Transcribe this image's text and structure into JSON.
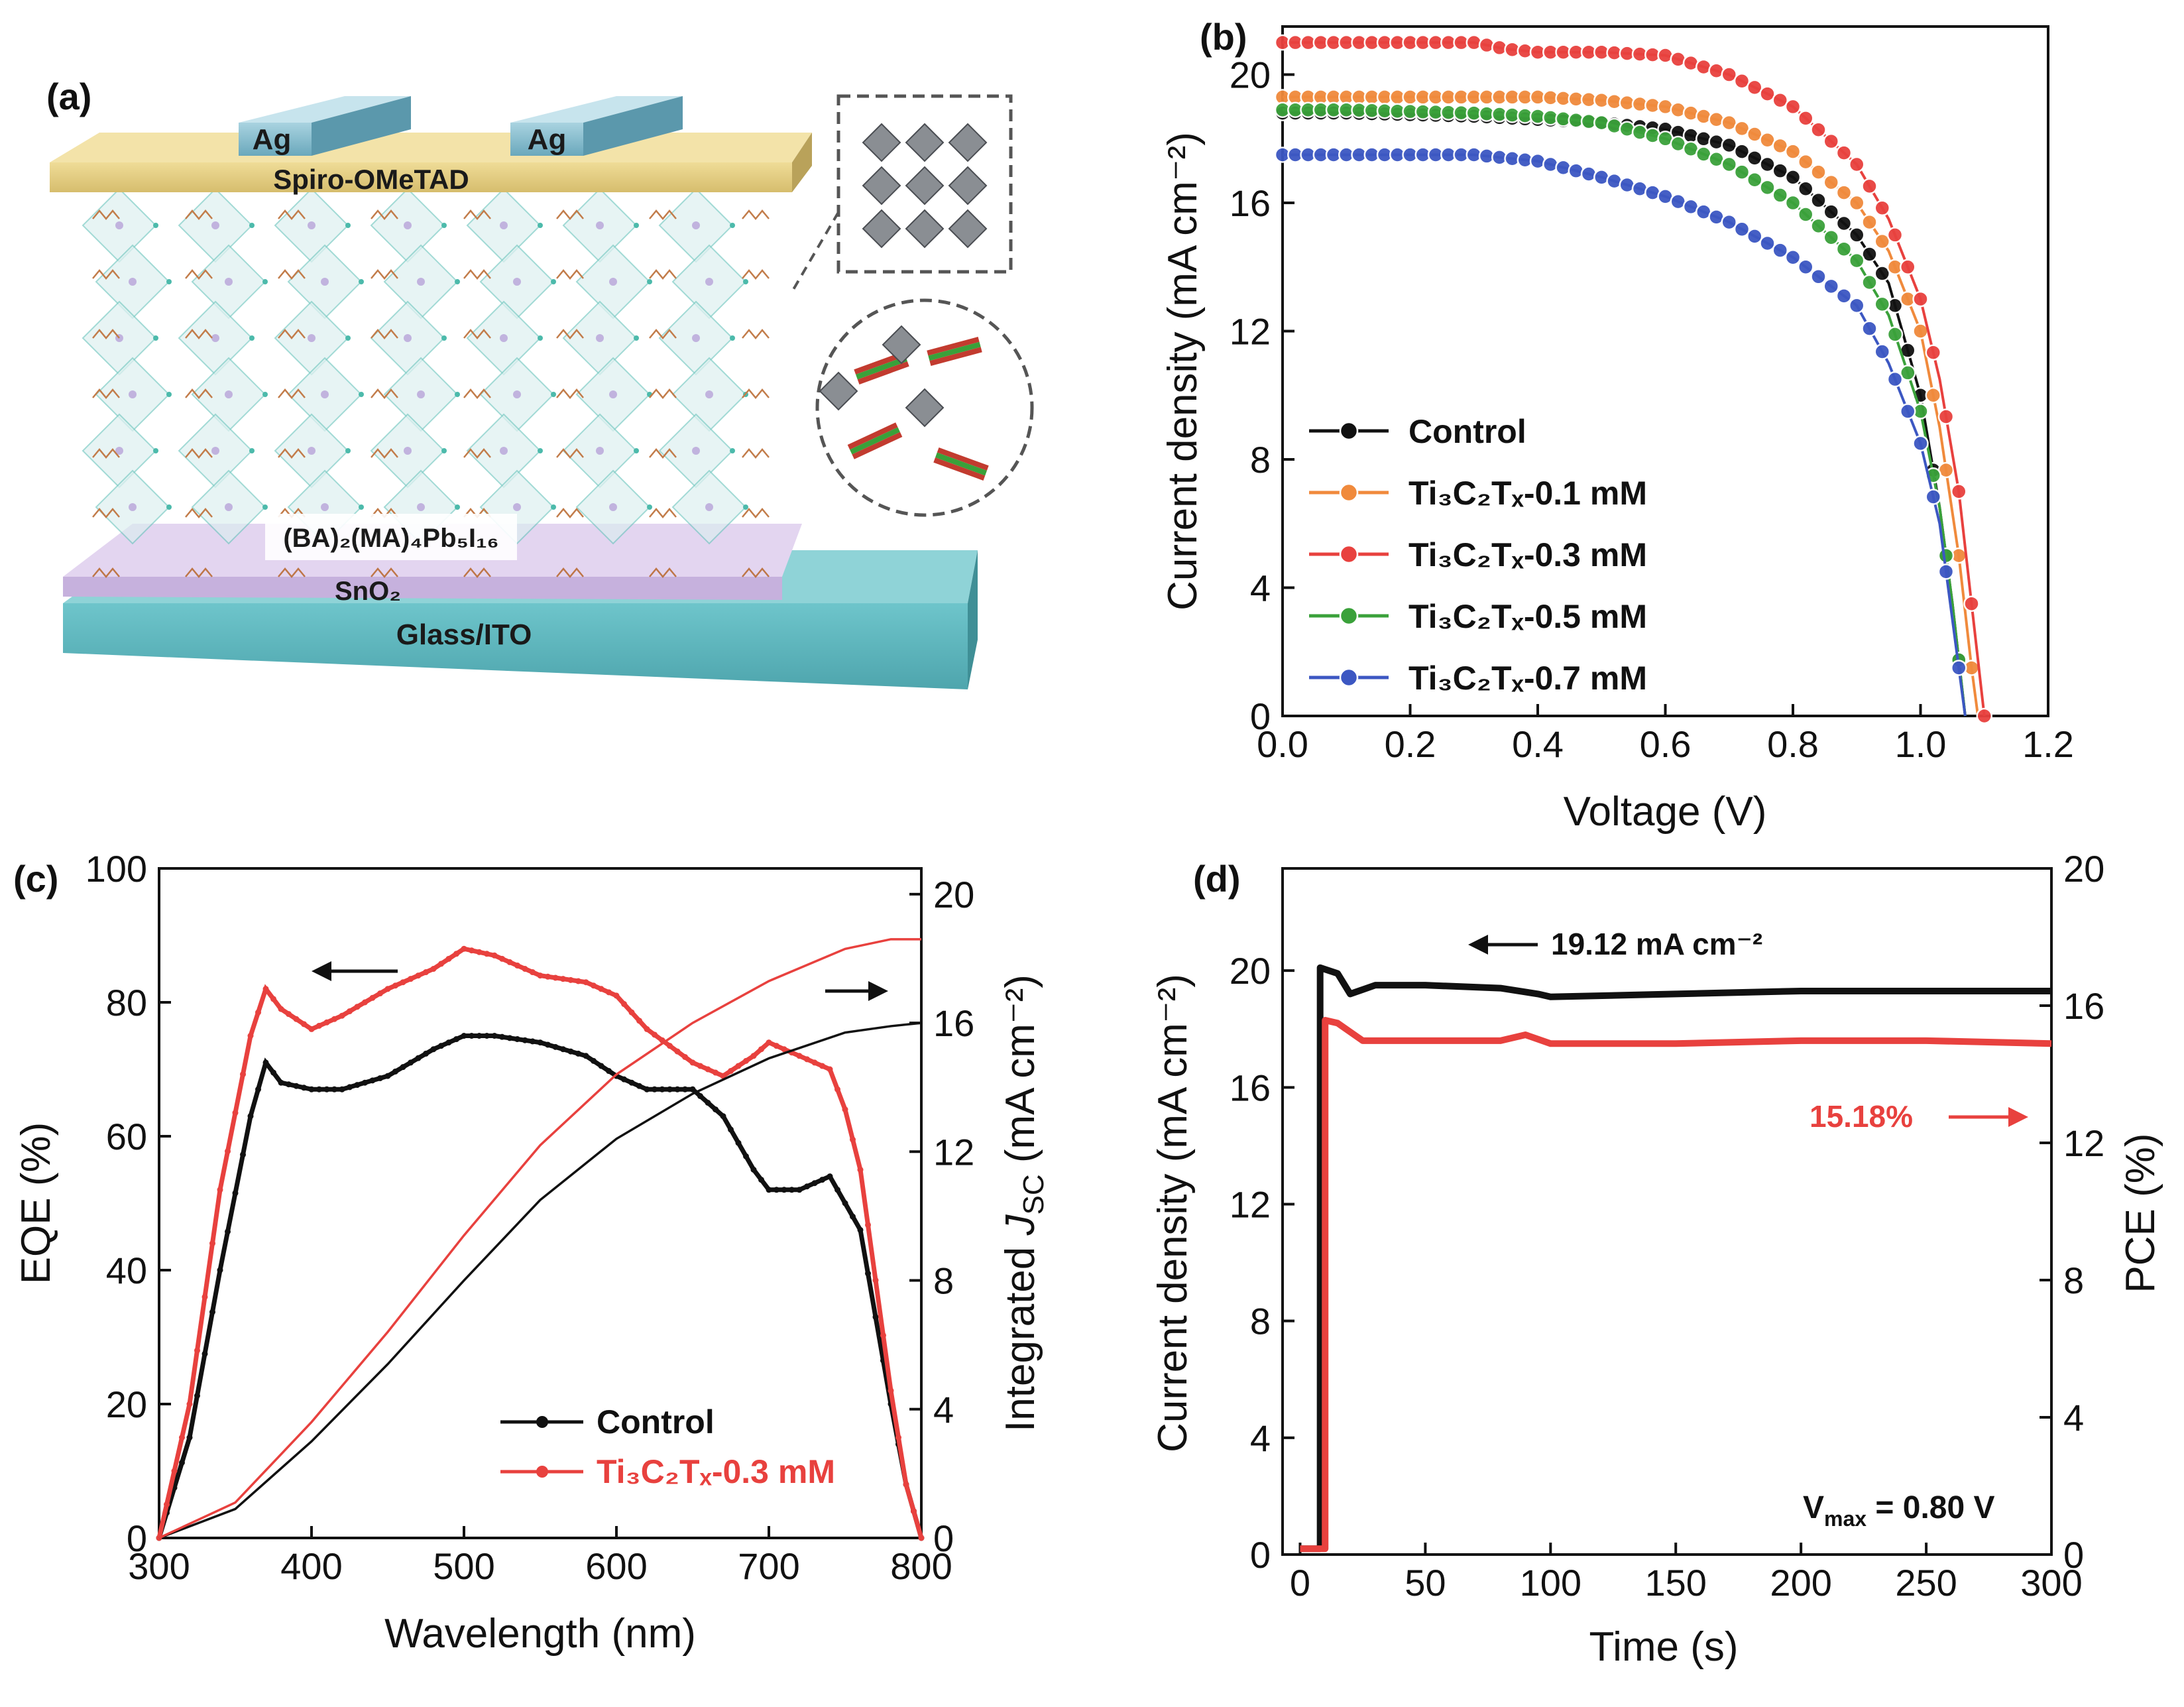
{
  "panels": {
    "a": {
      "letter": "(a)",
      "labels": {
        "electrode_left": "Ag",
        "electrode_right": "Ag",
        "htl": "Spiro-OMeTAD",
        "perovskite": "(BA)₂(MA)₄Pb₅I₁₆",
        "etl": "SnO₂",
        "substrate": "Glass/ITO"
      },
      "colors": {
        "ag": "#7fb7c9",
        "spiro": "#e5cf84",
        "sno2": "#d4c3e6",
        "ito": "#5fb6bd",
        "octahedra": "#9fd8d2",
        "chains": "#b7652a"
      }
    },
    "b": {
      "letter": "(b)",
      "chart_data": {
        "type": "line",
        "xlabel": "Voltage (V)",
        "ylabel": "Current density (mA cm⁻²)",
        "xlim": [
          0,
          1.2
        ],
        "ylim": [
          0,
          21.5
        ],
        "xticks": [
          "0.0",
          "0.2",
          "0.4",
          "0.6",
          "0.8",
          "1.0",
          "1.2"
        ],
        "yticks": [
          "0",
          "4",
          "8",
          "12",
          "16",
          "20"
        ],
        "series": [
          {
            "name": "Control",
            "color": "#111111",
            "points": [
              [
                0,
                18.8
              ],
              [
                0.1,
                18.8
              ],
              [
                0.2,
                18.75
              ],
              [
                0.3,
                18.7
              ],
              [
                0.4,
                18.6
              ],
              [
                0.5,
                18.5
              ],
              [
                0.6,
                18.3
              ],
              [
                0.7,
                17.8
              ],
              [
                0.8,
                16.8
              ],
              [
                0.9,
                15.0
              ],
              [
                0.95,
                13.5
              ],
              [
                1.0,
                10.0
              ],
              [
                1.03,
                6.5
              ],
              [
                1.05,
                3.5
              ],
              [
                1.07,
                0
              ]
            ]
          },
          {
            "name": "Ti₃C₂Tₓ-0.1 mM",
            "color": "#f08a3c",
            "points": [
              [
                0,
                19.3
              ],
              [
                0.1,
                19.3
              ],
              [
                0.2,
                19.3
              ],
              [
                0.3,
                19.3
              ],
              [
                0.4,
                19.3
              ],
              [
                0.5,
                19.2
              ],
              [
                0.6,
                19.0
              ],
              [
                0.7,
                18.5
              ],
              [
                0.8,
                17.6
              ],
              [
                0.9,
                16.0
              ],
              [
                0.95,
                14.5
              ],
              [
                1.0,
                12.0
              ],
              [
                1.03,
                9.0
              ],
              [
                1.06,
                5.0
              ],
              [
                1.08,
                1.5
              ],
              [
                1.09,
                0
              ]
            ]
          },
          {
            "name": "Ti₃C₂Tₓ-0.3 mM",
            "color": "#e8413e",
            "points": [
              [
                0,
                21.0
              ],
              [
                0.1,
                21.0
              ],
              [
                0.2,
                21.0
              ],
              [
                0.3,
                21.0
              ],
              [
                0.35,
                20.8
              ],
              [
                0.4,
                20.7
              ],
              [
                0.5,
                20.7
              ],
              [
                0.6,
                20.6
              ],
              [
                0.7,
                20.0
              ],
              [
                0.8,
                19.0
              ],
              [
                0.9,
                17.2
              ],
              [
                0.95,
                15.5
              ],
              [
                1.0,
                13.0
              ],
              [
                1.03,
                10.5
              ],
              [
                1.06,
                7.0
              ],
              [
                1.08,
                3.5
              ],
              [
                1.1,
                0
              ]
            ]
          },
          {
            "name": "Ti₃C₂Tₓ-0.5 mM",
            "color": "#3aa13a",
            "points": [
              [
                0,
                18.9
              ],
              [
                0.1,
                18.9
              ],
              [
                0.2,
                18.85
              ],
              [
                0.3,
                18.8
              ],
              [
                0.4,
                18.7
              ],
              [
                0.5,
                18.5
              ],
              [
                0.6,
                18.0
              ],
              [
                0.7,
                17.2
              ],
              [
                0.8,
                16.0
              ],
              [
                0.9,
                14.2
              ],
              [
                0.95,
                12.5
              ],
              [
                1.0,
                9.5
              ],
              [
                1.03,
                6.5
              ],
              [
                1.05,
                3.5
              ],
              [
                1.07,
                0
              ]
            ]
          },
          {
            "name": "Ti₃C₂Tₓ-0.7 mM",
            "color": "#3c57c2",
            "points": [
              [
                0,
                17.5
              ],
              [
                0.1,
                17.5
              ],
              [
                0.2,
                17.5
              ],
              [
                0.3,
                17.5
              ],
              [
                0.4,
                17.3
              ],
              [
                0.5,
                16.8
              ],
              [
                0.6,
                16.2
              ],
              [
                0.7,
                15.4
              ],
              [
                0.8,
                14.3
              ],
              [
                0.9,
                12.8
              ],
              [
                0.95,
                11.0
              ],
              [
                1.0,
                8.5
              ],
              [
                1.03,
                6.0
              ],
              [
                1.05,
                3.0
              ],
              [
                1.07,
                0
              ]
            ]
          }
        ]
      }
    },
    "c": {
      "letter": "(c)",
      "chart_data": {
        "type": "line",
        "xlabel": "Wavelength (nm)",
        "ylabel_left": "EQE (%)",
        "ylabel_right": "Integrated J_sc (mA cm⁻²)",
        "ylabel_right_parts": {
          "prefix": "Integrated ",
          "j": "J",
          "sub": "SC",
          "suffix": " (mA cm⁻²)"
        },
        "xlim": [
          300,
          800
        ],
        "ylim_left": [
          0,
          100
        ],
        "ylim_right": [
          0,
          20.8
        ],
        "xticks": [
          "300",
          "400",
          "500",
          "600",
          "700",
          "800"
        ],
        "yticks_left": [
          "0",
          "20",
          "40",
          "60",
          "80",
          "100"
        ],
        "yticks_right": [
          "0",
          "4",
          "8",
          "12",
          "16",
          "20"
        ],
        "series": [
          {
            "name": "Control",
            "axis": "left",
            "color": "#111111",
            "points": [
              [
                300,
                0
              ],
              [
                320,
                15
              ],
              [
                340,
                40
              ],
              [
                360,
                63
              ],
              [
                370,
                71
              ],
              [
                380,
                68
              ],
              [
                400,
                67
              ],
              [
                420,
                67
              ],
              [
                450,
                69
              ],
              [
                480,
                73
              ],
              [
                500,
                75
              ],
              [
                520,
                75
              ],
              [
                550,
                74
              ],
              [
                580,
                72
              ],
              [
                600,
                69
              ],
              [
                620,
                67
              ],
              [
                650,
                67
              ],
              [
                670,
                63
              ],
              [
                690,
                55
              ],
              [
                700,
                52
              ],
              [
                720,
                52
              ],
              [
                740,
                54
              ],
              [
                760,
                46
              ],
              [
                780,
                20
              ],
              [
                790,
                8
              ],
              [
                800,
                0
              ]
            ]
          },
          {
            "name": "Ti₃C₂Tₓ-0.3 mM",
            "axis": "left",
            "color": "#e8413e",
            "points": [
              [
                300,
                0
              ],
              [
                320,
                20
              ],
              [
                340,
                52
              ],
              [
                360,
                75
              ],
              [
                370,
                82
              ],
              [
                380,
                79
              ],
              [
                400,
                76
              ],
              [
                420,
                78
              ],
              [
                450,
                82
              ],
              [
                480,
                85
              ],
              [
                500,
                88
              ],
              [
                520,
                87
              ],
              [
                550,
                84
              ],
              [
                580,
                83
              ],
              [
                600,
                81
              ],
              [
                620,
                76
              ],
              [
                650,
                71
              ],
              [
                670,
                69
              ],
              [
                690,
                72
              ],
              [
                700,
                74
              ],
              [
                720,
                72
              ],
              [
                740,
                70
              ],
              [
                750,
                64
              ],
              [
                760,
                55
              ],
              [
                780,
                22
              ],
              [
                790,
                8
              ],
              [
                800,
                0
              ]
            ]
          },
          {
            "name": "Control J_sc",
            "axis": "right",
            "color": "#111111",
            "points": [
              [
                300,
                0
              ],
              [
                350,
                0.9
              ],
              [
                400,
                3.0
              ],
              [
                450,
                5.4
              ],
              [
                500,
                8.0
              ],
              [
                550,
                10.5
              ],
              [
                600,
                12.4
              ],
              [
                650,
                13.8
              ],
              [
                700,
                14.9
              ],
              [
                750,
                15.7
              ],
              [
                780,
                15.9
              ],
              [
                800,
                16.0
              ]
            ]
          },
          {
            "name": "Ti₃C₂Tₓ-0.3 mM J_sc",
            "axis": "right",
            "color": "#e8413e",
            "points": [
              [
                300,
                0
              ],
              [
                350,
                1.1
              ],
              [
                400,
                3.6
              ],
              [
                450,
                6.4
              ],
              [
                500,
                9.4
              ],
              [
                550,
                12.2
              ],
              [
                600,
                14.4
              ],
              [
                650,
                16.0
              ],
              [
                700,
                17.3
              ],
              [
                750,
                18.3
              ],
              [
                780,
                18.6
              ],
              [
                800,
                18.6
              ]
            ]
          }
        ],
        "legend": [
          "Control",
          "Ti₃C₂Tₓ-0.3 mM"
        ]
      }
    },
    "d": {
      "letter": "(d)",
      "chart_data": {
        "type": "line",
        "xlabel": "Time (s)",
        "ylabel_left": "Current density (mA cm⁻²)",
        "ylabel_right": "PCE (%)",
        "xlim": [
          -7,
          300
        ],
        "ylim_left": [
          0,
          23.5
        ],
        "ylim_right": [
          0,
          20
        ],
        "xticks": [
          "0",
          "50",
          "100",
          "150",
          "200",
          "250",
          "300"
        ],
        "yticks_left": [
          "0",
          "4",
          "8",
          "12",
          "16",
          "20"
        ],
        "yticks_right": [
          "0",
          "4",
          "8",
          "12",
          "16",
          "20"
        ],
        "series": [
          {
            "name": "Current density",
            "axis": "left",
            "color": "#111111",
            "points": [
              [
                0,
                0.2
              ],
              [
                8,
                0.2
              ],
              [
                8,
                20.1
              ],
              [
                15,
                19.9
              ],
              [
                20,
                19.2
              ],
              [
                30,
                19.5
              ],
              [
                50,
                19.5
              ],
              [
                80,
                19.4
              ],
              [
                95,
                19.2
              ],
              [
                100,
                19.1
              ],
              [
                150,
                19.2
              ],
              [
                200,
                19.3
              ],
              [
                250,
                19.3
              ],
              [
                300,
                19.3
              ]
            ]
          },
          {
            "name": "PCE",
            "axis": "left",
            "color": "#e8413e",
            "points": [
              [
                0,
                0.2
              ],
              [
                10,
                0.2
              ],
              [
                10,
                18.3
              ],
              [
                15,
                18.2
              ],
              [
                25,
                17.6
              ],
              [
                40,
                17.6
              ],
              [
                80,
                17.6
              ],
              [
                90,
                17.8
              ],
              [
                100,
                17.5
              ],
              [
                150,
                17.5
              ],
              [
                200,
                17.6
              ],
              [
                250,
                17.6
              ],
              [
                300,
                17.5
              ]
            ]
          }
        ],
        "annotations": {
          "current": "19.12 mA cm⁻²",
          "pce": "15.18%",
          "vmax_label": "V",
          "vmax_sub": "max",
          "vmax_value": " = 0.80 V"
        }
      }
    }
  }
}
